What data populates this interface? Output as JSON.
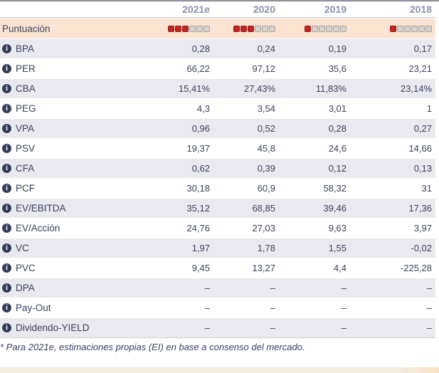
{
  "table": {
    "columns": [
      "2021e",
      "2020",
      "2019",
      "2018"
    ],
    "score_row": {
      "label": "Puntuación",
      "ratings": [
        3,
        3,
        1,
        1
      ],
      "max": 6
    },
    "rows": [
      {
        "label": "BPA",
        "values": [
          "0,28",
          "0,24",
          "0,19",
          "0,17"
        ]
      },
      {
        "label": "PER",
        "values": [
          "66,22",
          "97,12",
          "35,6",
          "23,21"
        ]
      },
      {
        "label": "CBA",
        "values": [
          "15,41%",
          "27,43%",
          "11,83%",
          "23,14%"
        ]
      },
      {
        "label": "PEG",
        "values": [
          "4,3",
          "3,54",
          "3,01",
          "1"
        ]
      },
      {
        "label": "VPA",
        "values": [
          "0,96",
          "0,52",
          "0,28",
          "0,27"
        ]
      },
      {
        "label": "PSV",
        "values": [
          "19,37",
          "45,8",
          "24,6",
          "14,66"
        ]
      },
      {
        "label": "CFA",
        "values": [
          "0,62",
          "0,39",
          "0,12",
          "0,13"
        ]
      },
      {
        "label": "PCF",
        "values": [
          "30,18",
          "60,9",
          "58,32",
          "31"
        ]
      },
      {
        "label": "EV/EBITDA",
        "values": [
          "35,12",
          "68,85",
          "39,46",
          "17,36"
        ]
      },
      {
        "label": "EV/Acción",
        "values": [
          "24,76",
          "27,03",
          "9,63",
          "3,97"
        ]
      },
      {
        "label": "VC",
        "values": [
          "1,97",
          "1,78",
          "1,55",
          "-0,02"
        ]
      },
      {
        "label": "PVC",
        "values": [
          "9,45",
          "13,27",
          "4,4",
          "-225,28"
        ]
      },
      {
        "label": "DPA",
        "values": [
          "–",
          "–",
          "–",
          "–"
        ]
      },
      {
        "label": "Pay-Out",
        "values": [
          "–",
          "–",
          "–",
          "–"
        ]
      },
      {
        "label": "Dividendo-YIELD",
        "values": [
          "–",
          "–",
          "–",
          "–"
        ]
      }
    ],
    "footnote": "* Para 2021e, estimaciones propias (EI) en base a consenso del mercado."
  },
  "icons": {
    "info": "i"
  },
  "colors": {
    "accent_red": "#c52522",
    "accent_red_border": "#8f1a17",
    "empty_square": "#d9d3ce",
    "score_row_bg": "#fbe5d2",
    "alt_row_bg": "#e9e9ef",
    "header_text": "#8b91af",
    "body_text": "#3c425e",
    "bottom_strip": "#f3ede1"
  }
}
